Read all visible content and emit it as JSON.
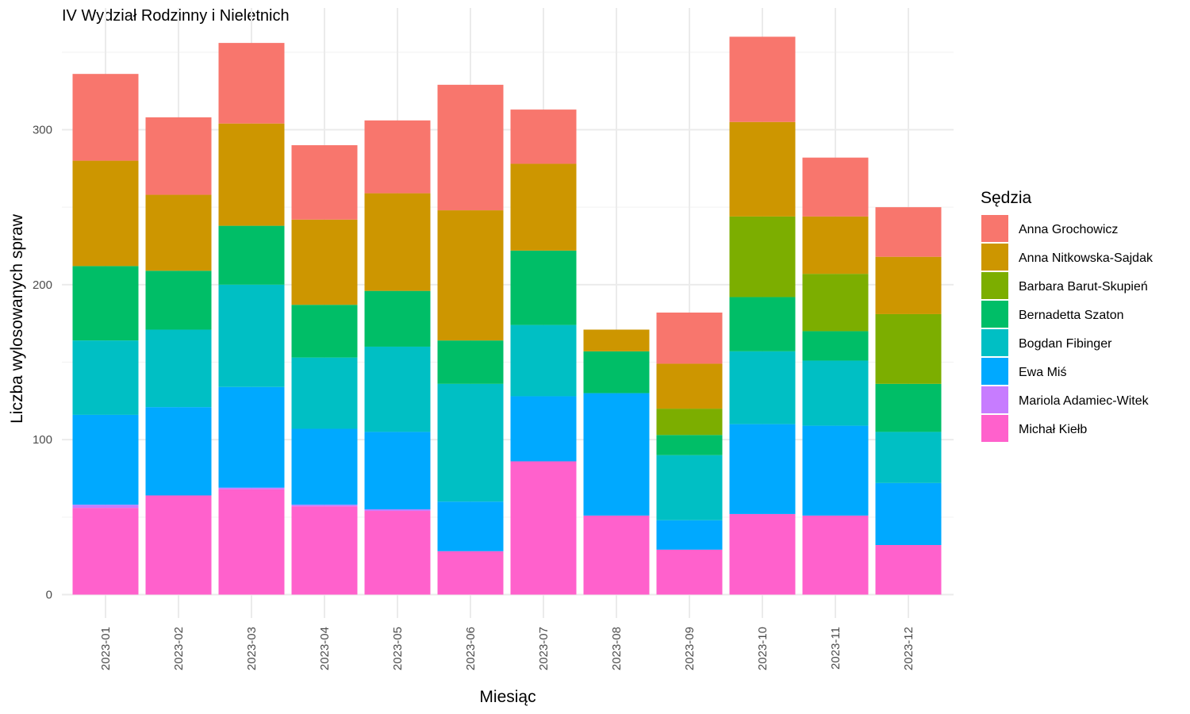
{
  "chart_data": {
    "type": "bar",
    "stacked": true,
    "title": "IV Wydział Rodzinny i Nieletnich",
    "xlabel": "Miesiąc",
    "ylabel": "Liczba wylosowanych spraw",
    "ylim": [
      0,
      370
    ],
    "yticks": [
      0,
      100,
      200,
      300
    ],
    "grid": true,
    "legend_position": "right",
    "legend_title": "Sędzia",
    "categories": [
      "2023-01",
      "2023-02",
      "2023-03",
      "2023-04",
      "2023-05",
      "2023-06",
      "2023-07",
      "2023-08",
      "2023-09",
      "2023-10",
      "2023-11",
      "2023-12"
    ],
    "series": [
      {
        "name": "Michał Kiełb",
        "color": "#FF61CC",
        "values": [
          56,
          64,
          68,
          57,
          54,
          28,
          86,
          51,
          29,
          52,
          51,
          32
        ]
      },
      {
        "name": "Mariola Adamiec-Witek",
        "color": "#C77CFF",
        "values": [
          2,
          0,
          1,
          1,
          1,
          0,
          0,
          0,
          0,
          0,
          0,
          0
        ]
      },
      {
        "name": "Ewa Miś",
        "color": "#00A9FF",
        "values": [
          58,
          57,
          65,
          49,
          50,
          32,
          42,
          79,
          19,
          58,
          58,
          40
        ]
      },
      {
        "name": "Bogdan Fibinger",
        "color": "#00BFC4",
        "values": [
          48,
          50,
          66,
          46,
          55,
          76,
          46,
          0,
          42,
          47,
          42,
          33
        ]
      },
      {
        "name": "Bernadetta Szaton",
        "color": "#00BE67",
        "values": [
          48,
          38,
          38,
          34,
          36,
          28,
          48,
          27,
          13,
          35,
          19,
          31
        ]
      },
      {
        "name": "Barbara Barut-Skupień",
        "color": "#7CAE00",
        "values": [
          0,
          0,
          0,
          0,
          0,
          0,
          0,
          0,
          17,
          52,
          37,
          45
        ]
      },
      {
        "name": "Anna Nitkowska-Sajdak",
        "color": "#CD9600",
        "values": [
          68,
          49,
          66,
          55,
          63,
          84,
          56,
          14,
          29,
          61,
          37,
          37
        ]
      },
      {
        "name": "Anna Grochowicz",
        "color": "#F8766D",
        "values": [
          56,
          50,
          52,
          48,
          47,
          81,
          35,
          0,
          33,
          55,
          38,
          32
        ]
      }
    ],
    "legend_order": [
      "Anna Grochowicz",
      "Anna Nitkowska-Sajdak",
      "Barbara Barut-Skupień",
      "Bernadetta Szaton",
      "Bogdan Fibinger",
      "Ewa Miś",
      "Mariola Adamiec-Witek",
      "Michał Kiełb"
    ]
  }
}
